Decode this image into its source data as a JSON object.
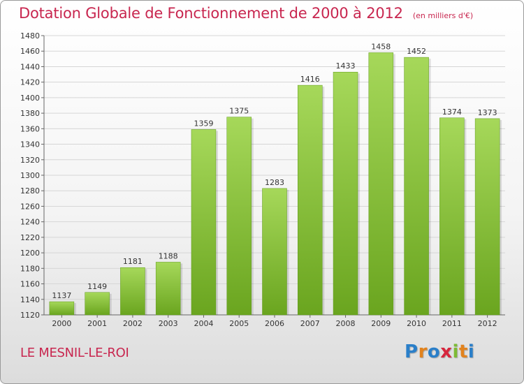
{
  "chart_data": {
    "type": "bar",
    "title": "Dotation Globale de Fonctionnement de 2000 à 2012",
    "subtitle": "(en milliers d'€)",
    "categories": [
      "2000",
      "2001",
      "2002",
      "2003",
      "2004",
      "2005",
      "2006",
      "2007",
      "2008",
      "2009",
      "2010",
      "2011",
      "2012"
    ],
    "values": [
      1137,
      1149,
      1181,
      1188,
      1359,
      1375,
      1283,
      1416,
      1433,
      1458,
      1452,
      1374,
      1373
    ],
    "ylim": [
      1120,
      1480
    ],
    "yticks": [
      1120,
      1140,
      1160,
      1180,
      1200,
      1220,
      1240,
      1260,
      1280,
      1300,
      1320,
      1340,
      1360,
      1380,
      1400,
      1420,
      1440,
      1460,
      1480
    ],
    "grid": true,
    "bar_color": "#7dbb35",
    "bar_color_light": "#a6d85a"
  },
  "footer": {
    "commune": "LE MESNIL-LE-ROI",
    "brand": "Proxiti"
  },
  "colors": {
    "title": "#c8264f"
  }
}
